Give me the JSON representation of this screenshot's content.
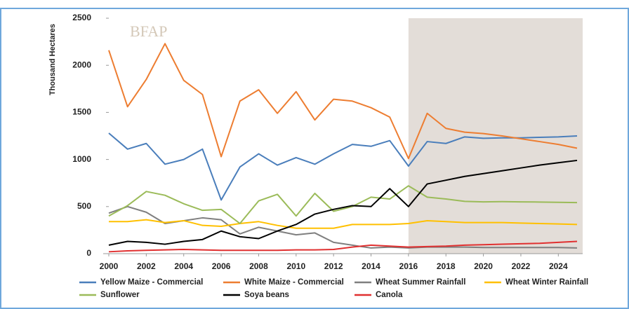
{
  "chart_data": {
    "type": "line",
    "logo": "BFAP",
    "y_label": "Thousand Hectares",
    "x": [
      2000,
      2001,
      2002,
      2003,
      2004,
      2005,
      2006,
      2007,
      2008,
      2009,
      2010,
      2011,
      2012,
      2013,
      2014,
      2015,
      2016,
      2017,
      2018,
      2019,
      2020,
      2021,
      2022,
      2023,
      2024,
      2025
    ],
    "xlim": [
      2000,
      2025
    ],
    "xticks": [
      2000,
      2002,
      2004,
      2006,
      2008,
      2010,
      2012,
      2014,
      2016,
      2018,
      2020,
      2022,
      2024
    ],
    "ylim": [
      0,
      2500
    ],
    "yticks": [
      0,
      500,
      1000,
      1500,
      2000,
      2500
    ],
    "shade_start": 2016,
    "shade_color": "#e3ddd8",
    "series": [
      {
        "name": "Yellow Maize - Commercial",
        "color": "#4a7ebb",
        "values": [
          1280,
          1110,
          1170,
          950,
          1000,
          1110,
          570,
          920,
          1060,
          940,
          1020,
          950,
          1060,
          1160,
          1140,
          1200,
          930,
          1190,
          1170,
          1240,
          1225,
          1230,
          1230,
          1235,
          1240,
          1250
        ]
      },
      {
        "name": "White Maize - Commercial",
        "color": "#ed7d31",
        "values": [
          2160,
          1560,
          1850,
          2230,
          1840,
          1690,
          1030,
          1620,
          1740,
          1490,
          1720,
          1420,
          1640,
          1620,
          1550,
          1450,
          1010,
          1490,
          1330,
          1290,
          1275,
          1250,
          1220,
          1190,
          1160,
          1120
        ]
      },
      {
        "name": "Wheat Summer Rainfall",
        "color": "#7f7f7f",
        "values": [
          430,
          500,
          440,
          320,
          350,
          380,
          360,
          210,
          280,
          240,
          200,
          220,
          120,
          90,
          60,
          70,
          60,
          70,
          70,
          70,
          65,
          65,
          65,
          65,
          65,
          60
        ]
      },
      {
        "name": "Wheat Winter Rainfall",
        "color": "#ffc000",
        "values": [
          340,
          340,
          360,
          330,
          350,
          300,
          290,
          320,
          340,
          300,
          270,
          270,
          270,
          310,
          310,
          310,
          320,
          350,
          340,
          330,
          330,
          330,
          325,
          320,
          315,
          310
        ]
      },
      {
        "name": "Sunflower",
        "color": "#9bbb59",
        "values": [
          400,
          510,
          660,
          620,
          530,
          460,
          470,
          320,
          560,
          630,
          400,
          640,
          450,
          500,
          600,
          580,
          720,
          600,
          580,
          555,
          550,
          552,
          550,
          548,
          545,
          542
        ]
      },
      {
        "name": "Soya beans",
        "color": "#000000",
        "values": [
          90,
          130,
          120,
          100,
          130,
          150,
          240,
          180,
          160,
          240,
          310,
          420,
          470,
          510,
          500,
          690,
          500,
          740,
          780,
          820,
          850,
          880,
          910,
          940,
          965,
          990
        ]
      },
      {
        "name": "Canola",
        "color": "#e03030",
        "values": [
          20,
          30,
          35,
          40,
          45,
          40,
          35,
          35,
          35,
          35,
          40,
          40,
          45,
          70,
          90,
          80,
          70,
          75,
          80,
          90,
          95,
          100,
          105,
          110,
          120,
          130
        ]
      }
    ]
  }
}
